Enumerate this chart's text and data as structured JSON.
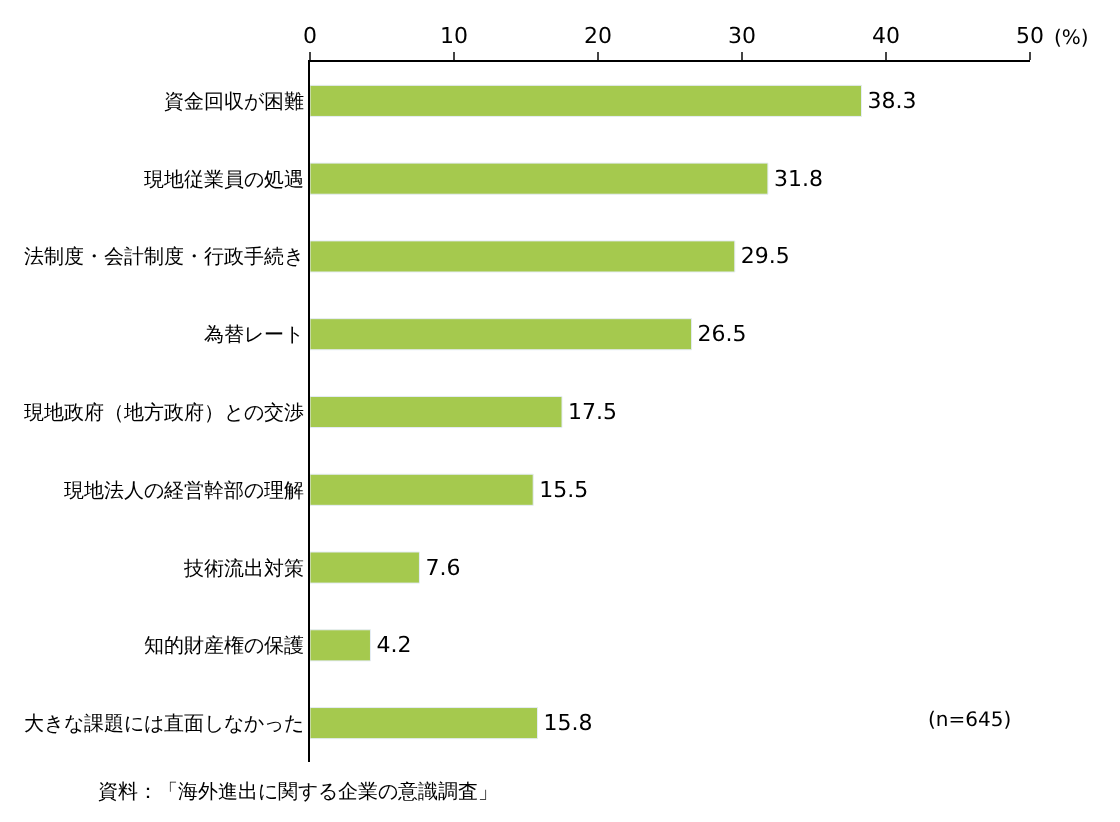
{
  "chart_data": {
    "type": "bar",
    "orientation": "horizontal",
    "categories": [
      "資金回収が困難",
      "現地従業員の処遇",
      "法制度・会計制度・行政手続き",
      "為替レート",
      "現地政府（地方政府）との交渉",
      "現地法人の経営幹部の理解",
      "技術流出対策",
      "知的財産権の保護",
      "大きな課題には直面しなかった"
    ],
    "values": [
      38.3,
      31.8,
      29.5,
      26.5,
      17.5,
      15.5,
      7.6,
      4.2,
      15.8
    ],
    "color": "#a5c94e",
    "xlim": [
      0,
      50
    ],
    "xticks": [
      0,
      10,
      20,
      30,
      40,
      50
    ],
    "xlabel": "(%)",
    "data_labels": true,
    "annotations": [
      "(n=645)",
      "資料：「海外進出に関する企業の意識調査」"
    ]
  }
}
